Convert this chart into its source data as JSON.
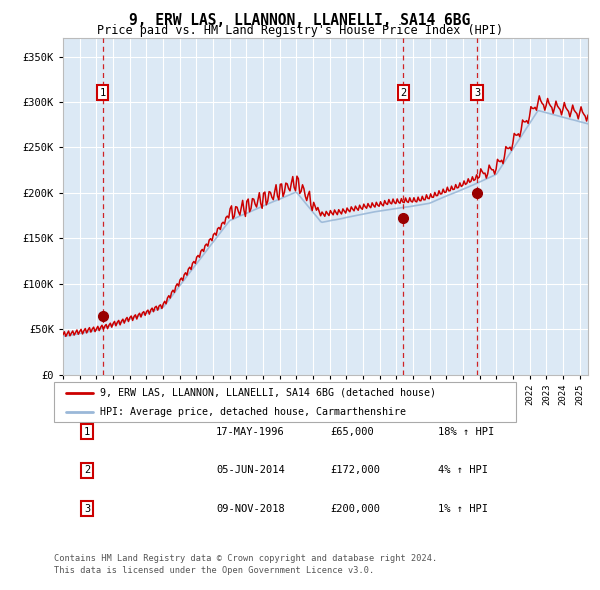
{
  "title": "9, ERW LAS, LLANNON, LLANELLI, SA14 6BG",
  "subtitle": "Price paid vs. HM Land Registry's House Price Index (HPI)",
  "ylim": [
    0,
    370000
  ],
  "yticks": [
    0,
    50000,
    100000,
    150000,
    200000,
    250000,
    300000,
    350000
  ],
  "ytick_labels": [
    "£0",
    "£50K",
    "£100K",
    "£150K",
    "£200K",
    "£250K",
    "£300K",
    "£350K"
  ],
  "x_start_year": 1994,
  "x_end_year": 2025,
  "hpi_color": "#9ab8d8",
  "price_color": "#cc0000",
  "sale_date_years": [
    1996.38,
    2014.42,
    2018.85
  ],
  "sale_prices": [
    65000,
    172000,
    200000
  ],
  "sale_labels": [
    "1",
    "2",
    "3"
  ],
  "legend_line1": "9, ERW LAS, LLANNON, LLANELLI, SA14 6BG (detached house)",
  "legend_line2": "HPI: Average price, detached house, Carmarthenshire",
  "table_rows": [
    [
      "1",
      "17-MAY-1996",
      "£65,000",
      "18% ↑ HPI"
    ],
    [
      "2",
      "05-JUN-2014",
      "£172,000",
      "4% ↑ HPI"
    ],
    [
      "3",
      "09-NOV-2018",
      "£200,000",
      "1% ↑ HPI"
    ]
  ],
  "footer": "Contains HM Land Registry data © Crown copyright and database right 2024.\nThis data is licensed under the Open Government Licence v3.0.",
  "plot_bg_color": "#dce9f5",
  "grid_color": "#ffffff"
}
